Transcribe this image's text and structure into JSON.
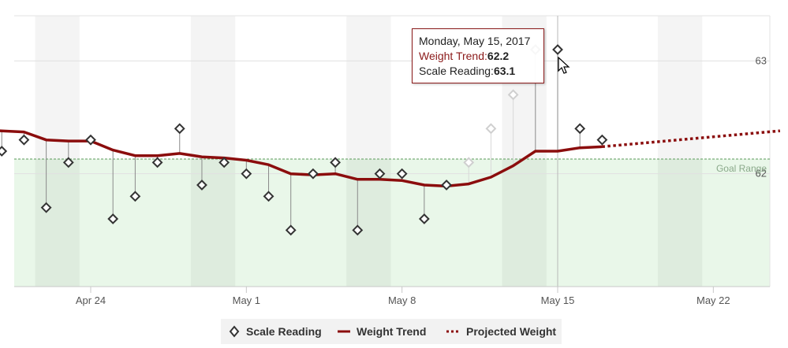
{
  "chart_data": {
    "type": "line",
    "x_axis": {
      "tick_labels": [
        "Apr 24",
        "May 1",
        "May 8",
        "May 15",
        "May 22"
      ],
      "tick_dates": [
        "2017-04-24",
        "2017-05-01",
        "2017-05-08",
        "2017-05-15",
        "2017-05-22"
      ],
      "range": [
        "2017-04-20",
        "2017-05-26"
      ],
      "weekend_shading": true
    },
    "y_axis": {
      "tick_labels": [
        "63",
        "62"
      ],
      "tick_values": [
        63,
        62
      ],
      "range": [
        61.0,
        63.4
      ],
      "position": "right",
      "grid": true
    },
    "goal_range": {
      "label": "Goal Range",
      "upper": 62.13,
      "color": "#e9f7e9"
    },
    "crosshair_date": "2017-05-15",
    "series": [
      {
        "name": "Scale Reading",
        "style": "diamond-markers-with-drops",
        "color": "#333333",
        "points": [
          {
            "date": "2017-04-20",
            "value": 62.2
          },
          {
            "date": "2017-04-21",
            "value": 62.3
          },
          {
            "date": "2017-04-22",
            "value": 61.7
          },
          {
            "date": "2017-04-23",
            "value": 62.1
          },
          {
            "date": "2017-04-24",
            "value": 62.3
          },
          {
            "date": "2017-04-25",
            "value": 61.6
          },
          {
            "date": "2017-04-26",
            "value": 61.8
          },
          {
            "date": "2017-04-27",
            "value": 62.1
          },
          {
            "date": "2017-04-28",
            "value": 62.4
          },
          {
            "date": "2017-04-29",
            "value": 61.9
          },
          {
            "date": "2017-04-30",
            "value": 62.1
          },
          {
            "date": "2017-05-01",
            "value": 62.0
          },
          {
            "date": "2017-05-02",
            "value": 61.8
          },
          {
            "date": "2017-05-03",
            "value": 61.5
          },
          {
            "date": "2017-05-04",
            "value": 62.0
          },
          {
            "date": "2017-05-05",
            "value": 62.1
          },
          {
            "date": "2017-05-06",
            "value": 61.5
          },
          {
            "date": "2017-05-07",
            "value": 62.0
          },
          {
            "date": "2017-05-08",
            "value": 62.0
          },
          {
            "date": "2017-05-09",
            "value": 61.6
          },
          {
            "date": "2017-05-10",
            "value": 61.9
          },
          {
            "date": "2017-05-11",
            "value": 62.1,
            "faded": true
          },
          {
            "date": "2017-05-12",
            "value": 62.4,
            "faded": true
          },
          {
            "date": "2017-05-13",
            "value": 62.7,
            "faded": true
          },
          {
            "date": "2017-05-14",
            "value": 63.1
          },
          {
            "date": "2017-05-15",
            "value": 63.1
          },
          {
            "date": "2017-05-16",
            "value": 62.4
          },
          {
            "date": "2017-05-17",
            "value": 62.3
          }
        ]
      },
      {
        "name": "Weight Trend",
        "style": "solid",
        "color": "#8b0d0d",
        "points": [
          {
            "date": "2017-04-19",
            "value": 62.39
          },
          {
            "date": "2017-04-20",
            "value": 62.38
          },
          {
            "date": "2017-04-21",
            "value": 62.37
          },
          {
            "date": "2017-04-22",
            "value": 62.3
          },
          {
            "date": "2017-04-23",
            "value": 62.29
          },
          {
            "date": "2017-04-24",
            "value": 62.29
          },
          {
            "date": "2017-04-25",
            "value": 62.21
          },
          {
            "date": "2017-04-26",
            "value": 62.16
          },
          {
            "date": "2017-04-27",
            "value": 62.16
          },
          {
            "date": "2017-04-28",
            "value": 62.18
          },
          {
            "date": "2017-04-29",
            "value": 62.15
          },
          {
            "date": "2017-04-30",
            "value": 62.14
          },
          {
            "date": "2017-05-01",
            "value": 62.12
          },
          {
            "date": "2017-05-02",
            "value": 62.08
          },
          {
            "date": "2017-05-03",
            "value": 62.0
          },
          {
            "date": "2017-05-04",
            "value": 61.99
          },
          {
            "date": "2017-05-05",
            "value": 62.0
          },
          {
            "date": "2017-05-06",
            "value": 61.95
          },
          {
            "date": "2017-05-07",
            "value": 61.95
          },
          {
            "date": "2017-05-08",
            "value": 61.94
          },
          {
            "date": "2017-05-09",
            "value": 61.9
          },
          {
            "date": "2017-05-10",
            "value": 61.89
          },
          {
            "date": "2017-05-11",
            "value": 61.91
          },
          {
            "date": "2017-05-12",
            "value": 61.97
          },
          {
            "date": "2017-05-13",
            "value": 62.07
          },
          {
            "date": "2017-05-14",
            "value": 62.2
          },
          {
            "date": "2017-05-15",
            "value": 62.2
          },
          {
            "date": "2017-05-16",
            "value": 62.23
          },
          {
            "date": "2017-05-17",
            "value": 62.24
          }
        ]
      },
      {
        "name": "Projected Weight",
        "style": "dotted",
        "color": "#8b0d0d",
        "points": [
          {
            "date": "2017-05-17",
            "value": 62.24
          },
          {
            "date": "2017-05-25",
            "value": 62.38
          }
        ]
      }
    ]
  },
  "tooltip": {
    "date": "Monday, May 15, 2017",
    "trend_label": "Weight Trend:",
    "trend_value": "62.2",
    "scale_label": "Scale Reading:",
    "scale_value": "63.1"
  },
  "legend": {
    "items": [
      "Scale Reading",
      "Weight Trend",
      "Projected Weight"
    ]
  }
}
